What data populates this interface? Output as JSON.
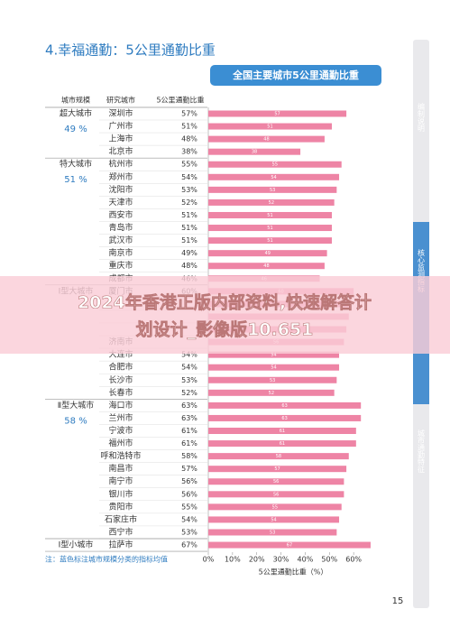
{
  "heading": "4.幸福通勤：5公里通勤比重",
  "chart_data": {
    "type": "bar",
    "orientation": "horizontal",
    "title": "全国主要城市5公里通勤比重",
    "column_headers": [
      "城市规模",
      "研究城市",
      "5公里通勤比重"
    ],
    "color": "#ee84a5",
    "groups": [
      {
        "name": "超大城市",
        "mean": "49 %",
        "categories": [
          "深圳市",
          "广州市",
          "上海市",
          "北京市"
        ],
        "values": [
          57,
          51,
          48,
          38
        ],
        "value_labels": [
          "57%",
          "51%",
          "48%",
          "38%"
        ]
      },
      {
        "name": "特大城市",
        "mean": "51 %",
        "categories": [
          "杭州市",
          "郑州市",
          "沈阳市",
          "天津市",
          "西安市",
          "青岛市",
          "武汉市",
          "南京市",
          "重庆市",
          "成都市"
        ],
        "values": [
          55,
          54,
          53,
          52,
          51,
          51,
          51,
          49,
          48,
          46
        ],
        "value_labels": [
          "55%",
          "54%",
          "53%",
          "52%",
          "51%",
          "51%",
          "51%",
          "49%",
          "48%",
          "46%"
        ]
      },
      {
        "name": "Ⅰ型大城市",
        "mean": null,
        "categories": [
          "厦门市",
          null,
          null,
          null,
          "济南市",
          "大连市",
          "合肥市",
          "长沙市",
          "长春市"
        ],
        "values": [
          60,
          59,
          58,
          57,
          56,
          54,
          54,
          53,
          52
        ],
        "value_labels": [
          "60%",
          null,
          null,
          null,
          null,
          "54%",
          "54%",
          "53%",
          "52%"
        ]
      },
      {
        "name": "Ⅱ型大城市",
        "mean": "58 %",
        "categories": [
          "海口市",
          "兰州市",
          "宁波市",
          "福州市",
          "呼和浩特市",
          "南昌市",
          "南宁市",
          "银川市",
          "贵阳市",
          "石家庄市",
          "西宁市"
        ],
        "values": [
          63,
          63,
          61,
          61,
          58,
          57,
          56,
          56,
          55,
          54,
          53
        ],
        "value_labels": [
          "63%",
          "63%",
          "61%",
          "61%",
          "58%",
          "57%",
          "56%",
          "56%",
          "55%",
          "54%",
          "53%"
        ]
      },
      {
        "name": "Ⅰ型小城市",
        "mean": null,
        "categories": [
          "拉萨市"
        ],
        "values": [
          67
        ],
        "value_labels": [
          "67%"
        ]
      }
    ],
    "xlim": [
      0,
      70
    ],
    "xticks": [
      {
        "value": 0,
        "label": "0%"
      },
      {
        "value": 10,
        "label": "10%"
      },
      {
        "value": 20,
        "label": "20%"
      },
      {
        "value": 30,
        "label": "30%"
      },
      {
        "value": 40,
        "label": "40%"
      },
      {
        "value": 50,
        "label": "50%"
      },
      {
        "value": 60,
        "label": "60%"
      }
    ],
    "xlabel": "5公里通勤比重（%）",
    "note": "注：蓝色标注城市规模分类的指标均值"
  },
  "sidebar": [
    "编制说明",
    "核心监测指标",
    "城市通勤特征"
  ],
  "page_number": "15",
  "banner": [
    "2024年香港正版内部资料,快速解答计",
    "划设计_影像版10.651"
  ]
}
